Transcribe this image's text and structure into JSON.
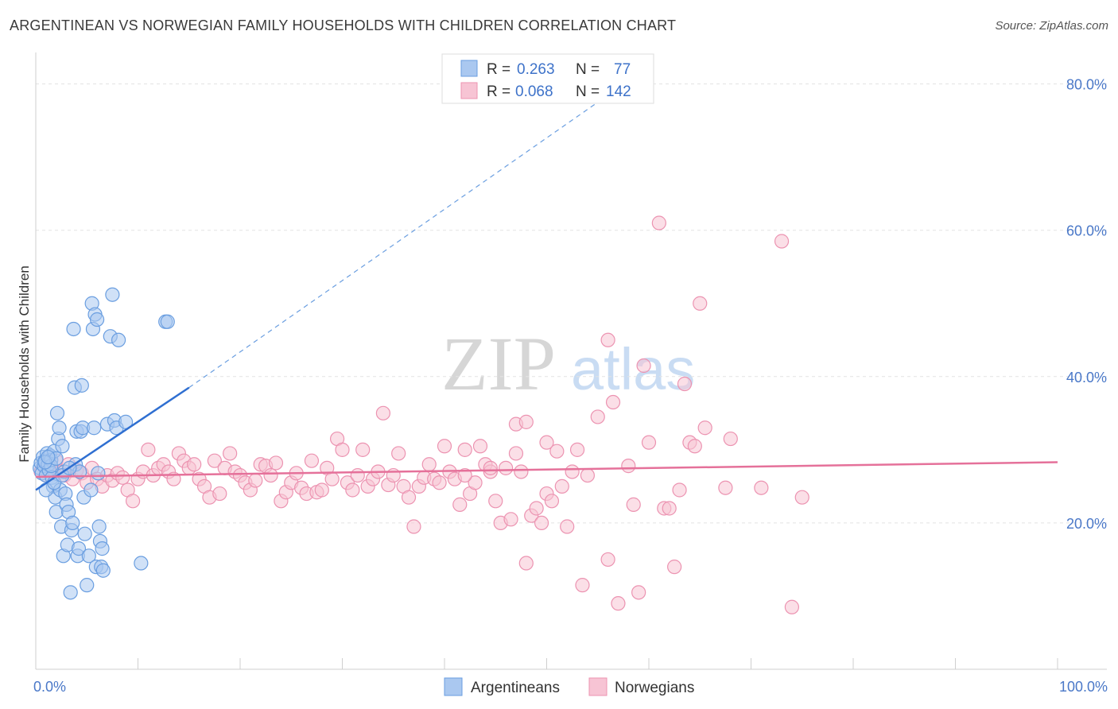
{
  "title": "ARGENTINEAN VS NORWEGIAN FAMILY HOUSEHOLDS WITH CHILDREN CORRELATION CHART",
  "source": "Source: ZipAtlas.com",
  "watermark": {
    "zip": "ZIP",
    "atlas": "atlas"
  },
  "legend": {
    "rows": [
      {
        "r_label": "R = ",
        "r_value": "0.263",
        "n_label": "N = ",
        "n_value": "77",
        "color": "#aac8f0",
        "stroke": "#6a9ee0"
      },
      {
        "r_label": "R = ",
        "r_value": "0.068",
        "n_label": "N = ",
        "n_value": "142",
        "color": "#f7c4d4",
        "stroke": "#ec93b1"
      }
    ]
  },
  "chart_data": {
    "type": "scatter",
    "title": "ARGENTINEAN VS NORWEGIAN FAMILY HOUSEHOLDS WITH CHILDREN CORRELATION CHART",
    "xlabel": "",
    "ylabel": "Family Households with Children",
    "xlim": [
      0,
      100
    ],
    "ylim": [
      0,
      83
    ],
    "x_tick_labels": [
      "0.0%",
      "100.0%"
    ],
    "y_ticks": [
      20,
      40,
      60,
      80
    ],
    "y_tick_labels": [
      "20.0%",
      "40.0%",
      "60.0%",
      "80.0%"
    ],
    "grid": true,
    "legend_position": "bottom",
    "series": [
      {
        "name": "Argentineans",
        "color": "#6a9ee0",
        "fill": "#aac8f0",
        "trend": {
          "x0": 0,
          "y0": 24.5,
          "x1": 15,
          "y1": 38.5,
          "dashed_to_x": 55,
          "dashed_to_y": 77.5
        },
        "points": [
          [
            0.4,
            27.5
          ],
          [
            0.5,
            28.2
          ],
          [
            0.6,
            26.8
          ],
          [
            0.7,
            29.0
          ],
          [
            0.8,
            27.8
          ],
          [
            0.9,
            28.5
          ],
          [
            1.0,
            26.5
          ],
          [
            1.1,
            29.5
          ],
          [
            1.2,
            28.0
          ],
          [
            1.3,
            27.2
          ],
          [
            1.4,
            29.2
          ],
          [
            1.5,
            28.6
          ],
          [
            1.6,
            26.2
          ],
          [
            1.7,
            25.0
          ],
          [
            1.8,
            29.8
          ],
          [
            1.9,
            23.5
          ],
          [
            2.0,
            21.5
          ],
          [
            2.1,
            35.0
          ],
          [
            2.2,
            31.5
          ],
          [
            2.3,
            33.0
          ],
          [
            2.4,
            24.5
          ],
          [
            2.5,
            19.5
          ],
          [
            2.6,
            30.5
          ],
          [
            2.7,
            15.5
          ],
          [
            2.8,
            27.0
          ],
          [
            2.9,
            24.0
          ],
          [
            3.0,
            22.5
          ],
          [
            3.1,
            17.0
          ],
          [
            3.2,
            21.5
          ],
          [
            3.4,
            10.5
          ],
          [
            3.5,
            19.0
          ],
          [
            3.6,
            20.0
          ],
          [
            3.7,
            46.5
          ],
          [
            3.8,
            38.5
          ],
          [
            3.9,
            28.0
          ],
          [
            4.0,
            32.5
          ],
          [
            4.1,
            15.5
          ],
          [
            4.2,
            16.5
          ],
          [
            4.3,
            27.0
          ],
          [
            4.4,
            32.5
          ],
          [
            4.5,
            38.8
          ],
          [
            4.6,
            33.0
          ],
          [
            4.7,
            23.5
          ],
          [
            4.8,
            18.5
          ],
          [
            5.0,
            11.5
          ],
          [
            5.2,
            15.5
          ],
          [
            5.4,
            24.5
          ],
          [
            5.5,
            50.0
          ],
          [
            5.6,
            46.5
          ],
          [
            5.7,
            33.0
          ],
          [
            5.8,
            48.5
          ],
          [
            5.9,
            14.0
          ],
          [
            6.0,
            47.8
          ],
          [
            6.1,
            26.8
          ],
          [
            6.2,
            19.5
          ],
          [
            6.3,
            17.5
          ],
          [
            6.4,
            14.0
          ],
          [
            6.5,
            16.5
          ],
          [
            6.6,
            13.5
          ],
          [
            7.0,
            33.5
          ],
          [
            7.3,
            45.5
          ],
          [
            7.5,
            51.2
          ],
          [
            7.7,
            34.0
          ],
          [
            7.9,
            33.0
          ],
          [
            8.1,
            45.0
          ],
          [
            8.8,
            33.8
          ],
          [
            10.3,
            14.5
          ],
          [
            12.7,
            47.5
          ],
          [
            12.9,
            47.5
          ],
          [
            1.0,
            24.5
          ],
          [
            1.5,
            27.8
          ],
          [
            2.0,
            28.8
          ],
          [
            0.9,
            28.3
          ],
          [
            1.2,
            29.0
          ],
          [
            1.8,
            25.5
          ],
          [
            2.6,
            26.5
          ],
          [
            3.3,
            27.5
          ]
        ]
      },
      {
        "name": "Norwegians",
        "color": "#ec93b1",
        "fill": "#f7c4d4",
        "trend": {
          "x0": 0,
          "y0": 26.3,
          "x1": 100,
          "y1": 28.3
        },
        "points": [
          [
            0.5,
            27.0
          ],
          [
            0.8,
            27.8
          ],
          [
            1.0,
            26.5
          ],
          [
            1.3,
            28.0
          ],
          [
            1.6,
            27.5
          ],
          [
            2.0,
            28.5
          ],
          [
            2.4,
            27.0
          ],
          [
            2.8,
            26.5
          ],
          [
            3.2,
            28.0
          ],
          [
            3.6,
            26.0
          ],
          [
            4.0,
            27.2
          ],
          [
            4.5,
            26.8
          ],
          [
            5.0,
            25.5
          ],
          [
            5.5,
            27.5
          ],
          [
            6.0,
            26.0
          ],
          [
            6.5,
            25.0
          ],
          [
            7.0,
            26.5
          ],
          [
            7.5,
            25.8
          ],
          [
            8.0,
            26.8
          ],
          [
            8.5,
            26.2
          ],
          [
            9.0,
            24.5
          ],
          [
            9.5,
            23.0
          ],
          [
            10.0,
            26.0
          ],
          [
            10.5,
            27.0
          ],
          [
            11.0,
            30.0
          ],
          [
            11.5,
            26.5
          ],
          [
            12.0,
            27.5
          ],
          [
            12.5,
            28.0
          ],
          [
            13.0,
            27.0
          ],
          [
            13.5,
            26.0
          ],
          [
            14.0,
            29.5
          ],
          [
            14.5,
            28.5
          ],
          [
            15.0,
            27.5
          ],
          [
            15.5,
            28.0
          ],
          [
            16.0,
            26.0
          ],
          [
            16.5,
            25.0
          ],
          [
            17.0,
            23.5
          ],
          [
            17.5,
            28.5
          ],
          [
            18.0,
            24.0
          ],
          [
            18.5,
            27.5
          ],
          [
            19.0,
            29.5
          ],
          [
            19.5,
            27.0
          ],
          [
            20.0,
            26.5
          ],
          [
            20.5,
            25.5
          ],
          [
            21.0,
            24.5
          ],
          [
            21.5,
            25.8
          ],
          [
            22.0,
            28.0
          ],
          [
            22.5,
            27.8
          ],
          [
            23.0,
            26.5
          ],
          [
            23.5,
            28.2
          ],
          [
            24.0,
            23.0
          ],
          [
            24.5,
            24.2
          ],
          [
            25.0,
            25.5
          ],
          [
            25.5,
            26.8
          ],
          [
            26.0,
            24.8
          ],
          [
            26.5,
            24.0
          ],
          [
            27.0,
            28.5
          ],
          [
            27.5,
            24.2
          ],
          [
            28.0,
            24.5
          ],
          [
            28.5,
            27.5
          ],
          [
            29.0,
            26.0
          ],
          [
            29.5,
            31.5
          ],
          [
            30.0,
            30.0
          ],
          [
            30.5,
            25.5
          ],
          [
            31.0,
            24.5
          ],
          [
            31.5,
            26.5
          ],
          [
            32.0,
            30.0
          ],
          [
            32.5,
            25.0
          ],
          [
            33.0,
            26.0
          ],
          [
            33.5,
            27.0
          ],
          [
            34.0,
            35.0
          ],
          [
            34.5,
            25.2
          ],
          [
            35.0,
            26.5
          ],
          [
            35.5,
            29.5
          ],
          [
            36.0,
            25.0
          ],
          [
            36.5,
            23.5
          ],
          [
            37.0,
            19.5
          ],
          [
            37.5,
            25.0
          ],
          [
            38.0,
            26.2
          ],
          [
            38.5,
            28.0
          ],
          [
            39.0,
            26.0
          ],
          [
            39.5,
            25.5
          ],
          [
            40.0,
            30.5
          ],
          [
            40.5,
            27.0
          ],
          [
            41.0,
            26.0
          ],
          [
            41.5,
            22.5
          ],
          [
            42.0,
            30.0
          ],
          [
            42.5,
            24.0
          ],
          [
            43.0,
            25.5
          ],
          [
            43.5,
            30.5
          ],
          [
            44.0,
            28.0
          ],
          [
            44.5,
            27.0
          ],
          [
            45.0,
            23.0
          ],
          [
            45.5,
            20.0
          ],
          [
            46.0,
            27.5
          ],
          [
            46.5,
            20.5
          ],
          [
            47.0,
            29.5
          ],
          [
            47.5,
            27.0
          ],
          [
            48.0,
            14.5
          ],
          [
            48.5,
            21.0
          ],
          [
            49.0,
            22.0
          ],
          [
            49.5,
            20.0
          ],
          [
            50.0,
            24.0
          ],
          [
            50.5,
            23.0
          ],
          [
            51.0,
            29.8
          ],
          [
            51.5,
            25.0
          ],
          [
            52.0,
            19.5
          ],
          [
            52.5,
            27.0
          ],
          [
            53.0,
            30.0
          ],
          [
            53.5,
            11.5
          ],
          [
            54.0,
            26.5
          ],
          [
            55.0,
            34.5
          ],
          [
            56.0,
            15.0
          ],
          [
            56.5,
            36.5
          ],
          [
            57.0,
            9.0
          ],
          [
            58.0,
            27.8
          ],
          [
            58.5,
            22.5
          ],
          [
            59.0,
            10.5
          ],
          [
            59.5,
            41.5
          ],
          [
            60.0,
            31.0
          ],
          [
            61.0,
            61.0
          ],
          [
            61.5,
            22.0
          ],
          [
            62.0,
            22.0
          ],
          [
            62.5,
            14.0
          ],
          [
            63.0,
            24.5
          ],
          [
            63.5,
            39.0
          ],
          [
            64.0,
            31.0
          ],
          [
            64.5,
            30.5
          ],
          [
            65.0,
            50.0
          ],
          [
            65.5,
            33.0
          ],
          [
            67.5,
            24.8
          ],
          [
            68.0,
            31.5
          ],
          [
            71.0,
            24.8
          ],
          [
            73.0,
            58.5
          ],
          [
            74.0,
            8.5
          ],
          [
            75.0,
            23.5
          ],
          [
            56.0,
            45.0
          ],
          [
            47.0,
            33.5
          ],
          [
            44.5,
            27.5
          ],
          [
            42.0,
            26.5
          ],
          [
            48.0,
            33.8
          ],
          [
            50.0,
            31.0
          ]
        ]
      }
    ]
  }
}
